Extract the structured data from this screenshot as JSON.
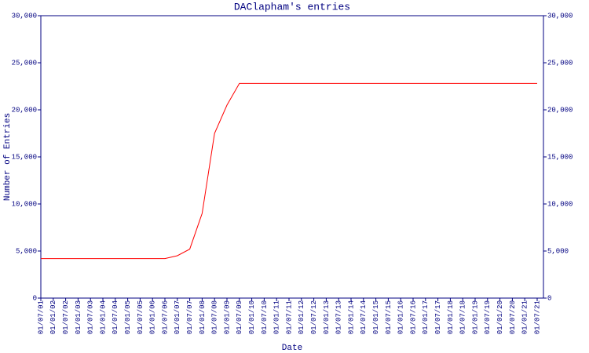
{
  "chart_data": {
    "type": "line",
    "title": "DAClapham's entries",
    "x_label": "Date",
    "y_label": "Number of Entries",
    "categories": [
      "01/07/01",
      "01/01/02",
      "01/07/02",
      "01/01/03",
      "01/07/03",
      "01/01/04",
      "01/07/04",
      "01/01/05",
      "01/07/05",
      "01/01/06",
      "01/07/06",
      "01/01/07",
      "01/07/07",
      "01/01/08",
      "01/07/08",
      "01/01/09",
      "01/07/09",
      "01/01/10",
      "01/07/10",
      "01/01/11",
      "01/07/11",
      "01/01/12",
      "01/07/12",
      "01/01/13",
      "01/07/13",
      "01/01/14",
      "01/07/14",
      "01/01/15",
      "01/07/15",
      "01/01/16",
      "01/07/16",
      "01/01/17",
      "01/07/17",
      "01/01/18",
      "01/07/18",
      "01/01/19",
      "01/07/19",
      "01/01/20",
      "01/07/20",
      "01/01/21",
      "01/07/21"
    ],
    "values": [
      4200,
      4200,
      4200,
      4200,
      4200,
      4200,
      4200,
      4200,
      4200,
      4200,
      4200,
      4500,
      5200,
      9000,
      17500,
      20500,
      22800,
      22800,
      22800,
      22800,
      22800,
      22800,
      22800,
      22800,
      22800,
      22800,
      22800,
      22800,
      22800,
      22800,
      22800,
      22800,
      22800,
      22800,
      22800,
      22800,
      22800,
      22800,
      22800,
      22800,
      22800
    ],
    "color": "#ff0000",
    "axis_color": "#000080",
    "ylim": [
      0,
      30000
    ],
    "yticks": [
      0,
      {
        "value": 5000,
        "label": "5,000"
      },
      {
        "value": 10000,
        "label": "10,000"
      },
      {
        "value": 15000,
        "label": "15,000"
      },
      {
        "value": 20000,
        "label": "20,000"
      },
      {
        "value": 25000,
        "label": "25,000"
      },
      {
        "value": 30000,
        "label": "30,000"
      }
    ],
    "y2lim": [
      0,
      30000
    ],
    "grid": false
  }
}
